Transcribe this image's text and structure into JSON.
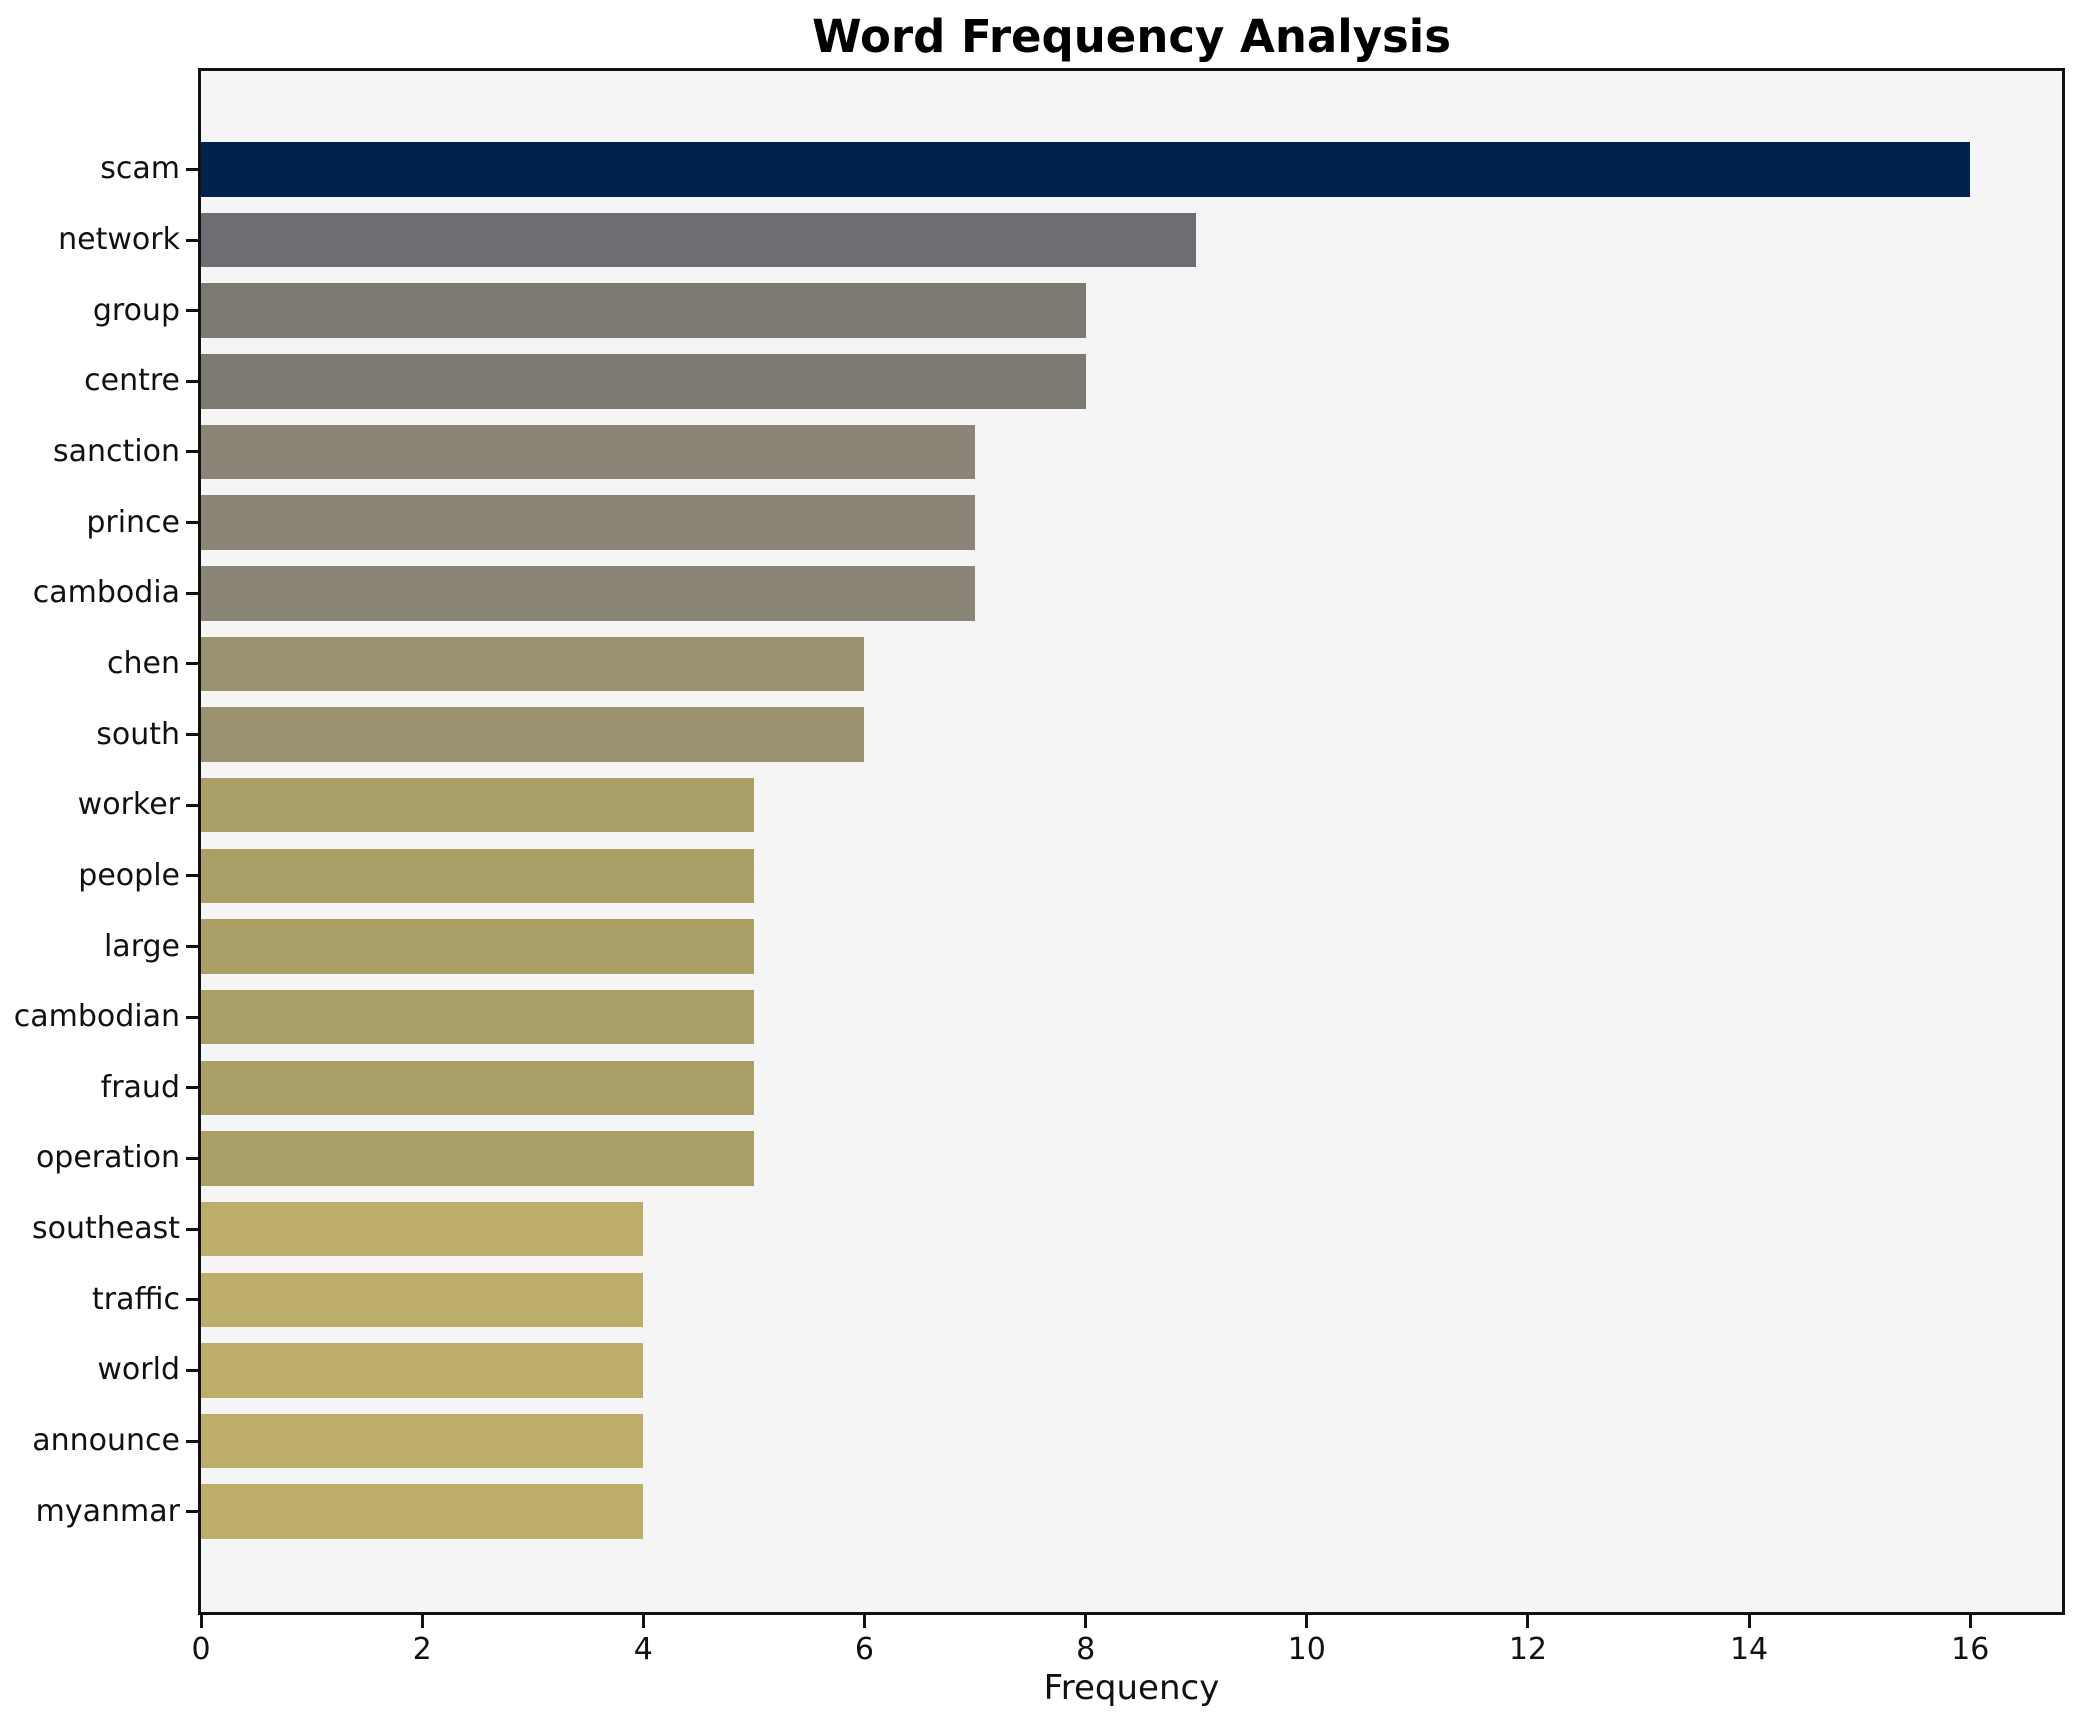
{
  "chart_data": {
    "type": "bar",
    "orientation": "horizontal",
    "title": "Word Frequency Analysis",
    "xlabel": "Frequency",
    "ylabel": "",
    "categories": [
      "scam",
      "network",
      "group",
      "centre",
      "sanction",
      "prince",
      "cambodia",
      "chen",
      "south",
      "worker",
      "people",
      "large",
      "cambodian",
      "fraud",
      "operation",
      "southeast",
      "traffic",
      "world",
      "announce",
      "myanmar"
    ],
    "values": [
      16,
      9,
      8,
      8,
      7,
      7,
      7,
      6,
      6,
      5,
      5,
      5,
      5,
      5,
      5,
      4,
      4,
      4,
      4,
      4
    ],
    "bar_colors": [
      "#00234e",
      "#6c6e74",
      "#7b7970",
      "#7b7970",
      "#8b8577",
      "#8b8577",
      "#8b8577",
      "#9a9271",
      "#9a9271",
      "#ab9f68",
      "#ab9f68",
      "#ab9f68",
      "#ab9f68",
      "#ab9f68",
      "#ab9f68",
      "#bcae69",
      "#bcae69",
      "#bcae69",
      "#bcae69",
      "#bcae69"
    ],
    "xticks": [
      0,
      2,
      4,
      6,
      8,
      10,
      12,
      14,
      16
    ],
    "xlim": [
      0,
      16.83
    ],
    "grid": false,
    "legend_position": "none",
    "plot_background": "#f5f5f6",
    "figure_background": "#ffffff",
    "spine_color": "#111111",
    "text_color": "#111111"
  }
}
